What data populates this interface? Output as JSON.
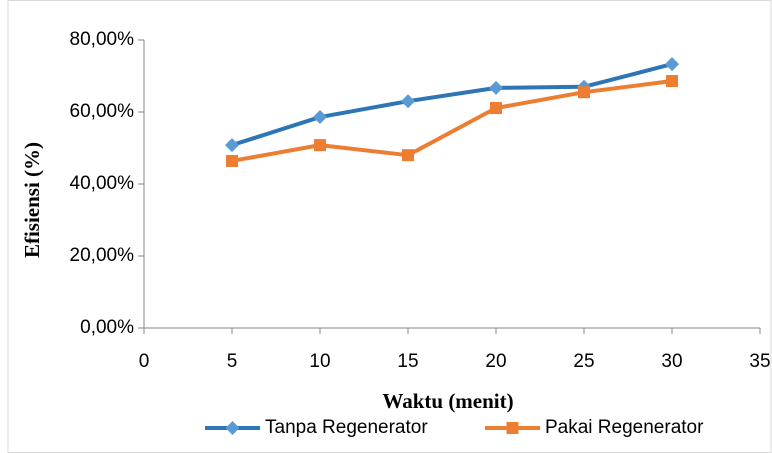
{
  "chart_data": {
    "type": "line",
    "xlabel": "Waktu (menit)",
    "ylabel": "Efisiensi (%)",
    "x": [
      5,
      10,
      15,
      20,
      25,
      30
    ],
    "series": [
      {
        "name": "Tanpa Regenerator",
        "color": "#2e75b6",
        "marker_color": "#5b9bd5",
        "marker": "diamond",
        "values": [
          50.8,
          58.6,
          63,
          66.7,
          67,
          73.3
        ]
      },
      {
        "name": "Pakai Regenerator",
        "color": "#ed7d31",
        "marker_color": "#ed7d31",
        "marker": "square",
        "values": [
          46.4,
          50.8,
          48,
          61.1,
          65.5,
          68.6
        ]
      }
    ],
    "xlim": [
      0,
      35
    ],
    "xticks": [
      0,
      5,
      10,
      15,
      20,
      25,
      30,
      35
    ],
    "ylim": [
      0,
      80
    ],
    "yticks": [
      {
        "value": 0,
        "label": "0,00%"
      },
      {
        "value": 20,
        "label": "20,00%"
      },
      {
        "value": 40,
        "label": "40,00%"
      },
      {
        "value": 60,
        "label": "60,00%"
      },
      {
        "value": 80,
        "label": "80,00%"
      }
    ],
    "legend": "bottom"
  }
}
